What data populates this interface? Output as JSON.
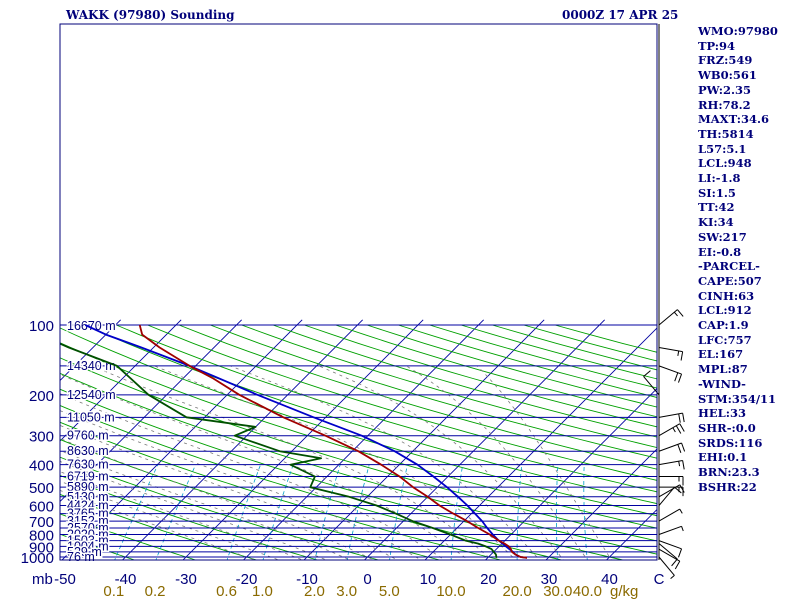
{
  "header": {
    "station": "WAKK (97980) Sounding",
    "time": "0000Z 17 APR 25"
  },
  "stats": [
    "WMO:97980",
    "TP:94",
    "FRZ:549",
    "WB0:561",
    "PW:2.35",
    "RH:78.2",
    "MAXT:34.6",
    "TH:5814",
    "L57:5.1",
    "LCL:948",
    "LI:-1.8",
    "SI:1.5",
    "TT:42",
    "KI:34",
    "SW:217",
    "EI:-0.8",
    "-PARCEL-",
    "CAPE:507",
    "CINH:63",
    "LCL:912",
    "CAP:1.9",
    "LFC:757",
    "EL:167",
    "MPL:87",
    "-WIND-",
    "STM:354/11",
    "HEL:33",
    "SHR-:0.0",
    "SRDS:116",
    "EHI:0.1",
    "BRN:23.3",
    "BSHR:22"
  ],
  "colors": {
    "frame": "#00007a",
    "isobar": "#0000a0",
    "isotherm": "#0000a0",
    "dry_adiabat": "#00a000",
    "moist_adiabat": "#7a7a7a",
    "mixing_ratio": "#00a0c8",
    "temperature": "#a00000",
    "dewpoint": "#005000",
    "parcel": "#0000c8",
    "wind_barb": "#000000",
    "axis_text": "#00007a",
    "mixing_text": "#8a6a00"
  },
  "chart_data": {
    "type": "skew-t",
    "x_axis_unit": "mb",
    "temperature_ticks": [
      -50,
      -40,
      -30,
      -20,
      -10,
      0,
      10,
      20,
      30,
      40
    ],
    "temperature_final_tick": "C",
    "pressure_ticks": [
      100,
      200,
      300,
      400,
      500,
      600,
      700,
      800,
      900,
      1000
    ],
    "mixing_ratio_unit": "g/kg",
    "mixing_ratio_labels": [
      "0.1",
      "0.2",
      "0.6",
      "1.0",
      "2.0",
      "3.0",
      "5.0",
      "10.0",
      "20.0",
      "30.0",
      "40.0"
    ],
    "height_labels": [
      {
        "p": 100,
        "label": "16670 m"
      },
      {
        "p": 150,
        "label": "14340 m"
      },
      {
        "p": 200,
        "label": "12540 m"
      },
      {
        "p": 250,
        "label": "11050 m"
      },
      {
        "p": 300,
        "label": "9760 m"
      },
      {
        "p": 350,
        "label": "8630 m"
      },
      {
        "p": 400,
        "label": "7630 m"
      },
      {
        "p": 450,
        "label": "6719 m"
      },
      {
        "p": 500,
        "label": "5890 m"
      },
      {
        "p": 550,
        "label": "5130 m"
      },
      {
        "p": 600,
        "label": "4424 m"
      },
      {
        "p": 650,
        "label": "3765 m"
      },
      {
        "p": 700,
        "label": "3152 m"
      },
      {
        "p": 750,
        "label": "2570 m"
      },
      {
        "p": 800,
        "label": "2020 m"
      },
      {
        "p": 850,
        "label": "1503 m"
      },
      {
        "p": 900,
        "label": "1004 m"
      },
      {
        "p": 950,
        "label": "529 m"
      },
      {
        "p": 1000,
        "label": "76 m"
      }
    ],
    "temperature": [
      {
        "p": 1008,
        "t": 26.5
      },
      {
        "p": 1000,
        "t": 25.3
      },
      {
        "p": 975,
        "t": 24.0
      },
      {
        "p": 950,
        "t": 23.0
      },
      {
        "p": 925,
        "t": 22.4
      },
      {
        "p": 900,
        "t": 21.6
      },
      {
        "p": 875,
        "t": 20.4
      },
      {
        "p": 850,
        "t": 19.0
      },
      {
        "p": 800,
        "t": 16.5
      },
      {
        "p": 750,
        "t": 13.5
      },
      {
        "p": 700,
        "t": 10.5
      },
      {
        "p": 650,
        "t": 7.0
      },
      {
        "p": 600,
        "t": 3.4
      },
      {
        "p": 550,
        "t": 0.0
      },
      {
        "p": 500,
        "t": -4.0
      },
      {
        "p": 450,
        "t": -8.0
      },
      {
        "p": 400,
        "t": -13.0
      },
      {
        "p": 350,
        "t": -19.0
      },
      {
        "p": 300,
        "t": -27.0
      },
      {
        "p": 250,
        "t": -37.0
      },
      {
        "p": 200,
        "t": -48.0
      },
      {
        "p": 170,
        "t": -55.0
      },
      {
        "p": 150,
        "t": -61.0
      },
      {
        "p": 125,
        "t": -69.0
      },
      {
        "p": 110,
        "t": -74.0
      },
      {
        "p": 100,
        "t": -76.0
      }
    ],
    "dewpoint": [
      {
        "p": 1008,
        "t": 21.5
      },
      {
        "p": 1000,
        "t": 21.3
      },
      {
        "p": 975,
        "t": 20.8
      },
      {
        "p": 950,
        "t": 20.0
      },
      {
        "p": 925,
        "t": 19.2
      },
      {
        "p": 900,
        "t": 17.8
      },
      {
        "p": 875,
        "t": 16.0
      },
      {
        "p": 850,
        "t": 13.5
      },
      {
        "p": 800,
        "t": 10.0
      },
      {
        "p": 750,
        "t": 6.0
      },
      {
        "p": 700,
        "t": 1.5
      },
      {
        "p": 650,
        "t": -2.5
      },
      {
        "p": 600,
        "t": -7.0
      },
      {
        "p": 550,
        "t": -13.0
      },
      {
        "p": 500,
        "t": -21.0
      },
      {
        "p": 450,
        "t": -22.0
      },
      {
        "p": 400,
        "t": -28.0
      },
      {
        "p": 375,
        "t": -24.0
      },
      {
        "p": 350,
        "t": -32.0
      },
      {
        "p": 300,
        "t": -42.0
      },
      {
        "p": 275,
        "t": -40.0
      },
      {
        "p": 250,
        "t": -53.0
      },
      {
        "p": 200,
        "t": -63.0
      },
      {
        "p": 150,
        "t": -73.0
      },
      {
        "p": 125,
        "t": -84.0
      },
      {
        "p": 110,
        "t": -91.0
      },
      {
        "p": 100,
        "t": -92.0
      }
    ],
    "parcel": [
      {
        "p": 1008,
        "t": 26.5
      },
      {
        "p": 1000,
        "t": 25.3
      },
      {
        "p": 975,
        "t": 24.0
      },
      {
        "p": 950,
        "t": 23.2
      },
      {
        "p": 912,
        "t": 21.6
      },
      {
        "p": 850,
        "t": 19.0
      },
      {
        "p": 800,
        "t": 17.0
      },
      {
        "p": 750,
        "t": 15.0
      },
      {
        "p": 700,
        "t": 13.0
      },
      {
        "p": 650,
        "t": 10.6
      },
      {
        "p": 600,
        "t": 8.0
      },
      {
        "p": 550,
        "t": 5.0
      },
      {
        "p": 500,
        "t": 1.6
      },
      {
        "p": 450,
        "t": -2.4
      },
      {
        "p": 400,
        "t": -7.0
      },
      {
        "p": 350,
        "t": -13.0
      },
      {
        "p": 300,
        "t": -21.0
      },
      {
        "p": 250,
        "t": -32.0
      },
      {
        "p": 200,
        "t": -45.0
      },
      {
        "p": 167,
        "t": -55.0
      },
      {
        "p": 150,
        "t": -61.0
      },
      {
        "p": 125,
        "t": -72.0
      },
      {
        "p": 110,
        "t": -80.0
      },
      {
        "p": 100,
        "t": -85.0
      }
    ],
    "winds": [
      {
        "p": 1000,
        "dir": 140,
        "spd": 5
      },
      {
        "p": 925,
        "dir": 120,
        "spd": 10
      },
      {
        "p": 875,
        "dir": 130,
        "spd": 10
      },
      {
        "p": 850,
        "dir": 110,
        "spd": 10
      },
      {
        "p": 800,
        "dir": 70,
        "spd": 5
      },
      {
        "p": 700,
        "dir": 60,
        "spd": 5
      },
      {
        "p": 600,
        "dir": 40,
        "spd": 10
      },
      {
        "p": 550,
        "dir": 60,
        "spd": 10
      },
      {
        "p": 500,
        "dir": 90,
        "spd": 15
      },
      {
        "p": 450,
        "dir": 90,
        "spd": 15
      },
      {
        "p": 400,
        "dir": 80,
        "spd": 15
      },
      {
        "p": 350,
        "dir": 70,
        "spd": 20
      },
      {
        "p": 300,
        "dir": 60,
        "spd": 25
      },
      {
        "p": 250,
        "dir": 80,
        "spd": 20
      },
      {
        "p": 200,
        "dir": 320,
        "spd": 10
      },
      {
        "p": 150,
        "dir": 110,
        "spd": 20
      },
      {
        "p": 125,
        "dir": 100,
        "spd": 15
      },
      {
        "p": 100,
        "dir": 50,
        "spd": 15
      }
    ]
  }
}
